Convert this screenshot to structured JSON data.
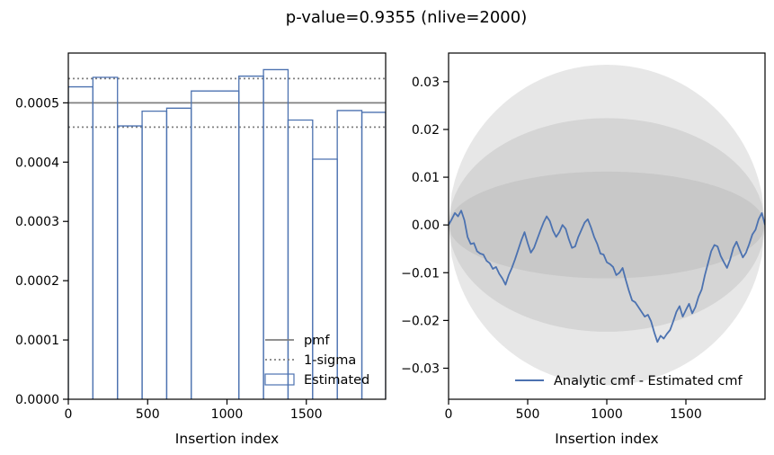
{
  "figure_title": "p-value=0.9355 (nlive=2000)",
  "colors": {
    "estimated": "#4c72b0",
    "pmf": "#808080",
    "sigma": "#808080",
    "band": "#a9a9a9"
  },
  "chart_data": [
    {
      "type": "step",
      "title": "",
      "xlabel": "Insertion index",
      "ylabel": "",
      "xlim": [
        0,
        2000
      ],
      "ylim": [
        0,
        0.000584
      ],
      "xticks": [
        0,
        500,
        1000,
        1500
      ],
      "xtick_labels": [
        "0",
        "500",
        "1000",
        "1500"
      ],
      "yticks": [
        0,
        0.0001,
        0.0002,
        0.0003,
        0.0004,
        0.0005
      ],
      "ytick_labels": [
        "0.0000",
        "0.0001",
        "0.0002",
        "0.0003",
        "0.0004",
        "0.0005"
      ],
      "pmf": 0.0005,
      "sigma_upper": 0.000541,
      "sigma_lower": 0.000459,
      "bin_edges": [
        0,
        155,
        310,
        465,
        620,
        775,
        1075,
        1230,
        1385,
        1540,
        1695,
        1850,
        2000
      ],
      "values": [
        0.000527,
        0.000543,
        0.000461,
        0.000486,
        0.000491,
        0.00052,
        0.000545,
        0.000556,
        0.000471,
        0.000405,
        0.000487,
        0.000484
      ],
      "legend": [
        {
          "label": "pmf",
          "style": "solid"
        },
        {
          "label": "1-sigma",
          "style": "dotted"
        },
        {
          "label": "Estimated",
          "style": "box"
        }
      ],
      "legend_position": "lower-right"
    },
    {
      "type": "line",
      "title": "",
      "xlabel": "Insertion index",
      "ylabel": "",
      "xlim": [
        0,
        2000
      ],
      "ylim": [
        -0.0365,
        0.036
      ],
      "xticks": [
        0,
        500,
        1000,
        1500
      ],
      "xtick_labels": [
        "0",
        "500",
        "1000",
        "1500"
      ],
      "yticks": [
        -0.03,
        -0.02,
        -0.01,
        0.0,
        0.01,
        0.02,
        0.03
      ],
      "ytick_labels": [
        "−0.03",
        "−0.02",
        "−0.01",
        "0.00",
        "0.01",
        "0.02",
        "0.03"
      ],
      "bands_sigma": [
        1,
        2,
        3
      ],
      "series": [
        {
          "name": "Analytic cmf - Estimated cmf",
          "x": [
            0,
            20,
            40,
            60,
            80,
            100,
            120,
            140,
            160,
            180,
            200,
            220,
            240,
            260,
            280,
            300,
            320,
            340,
            360,
            380,
            400,
            420,
            440,
            460,
            480,
            500,
            520,
            540,
            560,
            580,
            600,
            620,
            640,
            660,
            680,
            700,
            720,
            740,
            760,
            780,
            800,
            820,
            840,
            860,
            880,
            900,
            920,
            940,
            960,
            980,
            1000,
            1020,
            1040,
            1060,
            1080,
            1100,
            1120,
            1140,
            1160,
            1180,
            1200,
            1220,
            1240,
            1260,
            1280,
            1300,
            1320,
            1340,
            1360,
            1380,
            1400,
            1420,
            1440,
            1460,
            1480,
            1500,
            1520,
            1540,
            1560,
            1580,
            1600,
            1620,
            1640,
            1660,
            1680,
            1700,
            1720,
            1740,
            1760,
            1780,
            1800,
            1820,
            1840,
            1860,
            1880,
            1900,
            1920,
            1940,
            1960,
            1980,
            2000
          ],
          "y": [
            0.0,
            0.0012,
            0.0025,
            0.0018,
            0.003,
            0.001,
            -0.0025,
            -0.004,
            -0.0038,
            -0.0055,
            -0.006,
            -0.0062,
            -0.0075,
            -0.008,
            -0.0092,
            -0.0088,
            -0.0102,
            -0.0112,
            -0.0125,
            -0.0105,
            -0.009,
            -0.0072,
            -0.0052,
            -0.0032,
            -0.0015,
            -0.0038,
            -0.0058,
            -0.0048,
            -0.003,
            -0.0012,
            0.0005,
            0.0018,
            0.0008,
            -0.0012,
            -0.0025,
            -0.0015,
            0.0,
            -0.0008,
            -0.003,
            -0.0048,
            -0.0045,
            -0.0025,
            -0.001,
            0.0005,
            0.0012,
            -0.0005,
            -0.0025,
            -0.004,
            -0.006,
            -0.0062,
            -0.0078,
            -0.0082,
            -0.0088,
            -0.0105,
            -0.01,
            -0.009,
            -0.0115,
            -0.0138,
            -0.0158,
            -0.0162,
            -0.0172,
            -0.0182,
            -0.0192,
            -0.0188,
            -0.0202,
            -0.0225,
            -0.0245,
            -0.0232,
            -0.0238,
            -0.0228,
            -0.022,
            -0.0202,
            -0.0182,
            -0.017,
            -0.0192,
            -0.0178,
            -0.0165,
            -0.0185,
            -0.0172,
            -0.015,
            -0.0135,
            -0.0105,
            -0.008,
            -0.0055,
            -0.0042,
            -0.0045,
            -0.0065,
            -0.0078,
            -0.009,
            -0.0072,
            -0.0048,
            -0.0035,
            -0.0052,
            -0.0068,
            -0.0058,
            -0.004,
            -0.002,
            -0.001,
            0.0012,
            0.0025,
            0.0
          ]
        }
      ],
      "legend_position": "lower-right"
    }
  ]
}
